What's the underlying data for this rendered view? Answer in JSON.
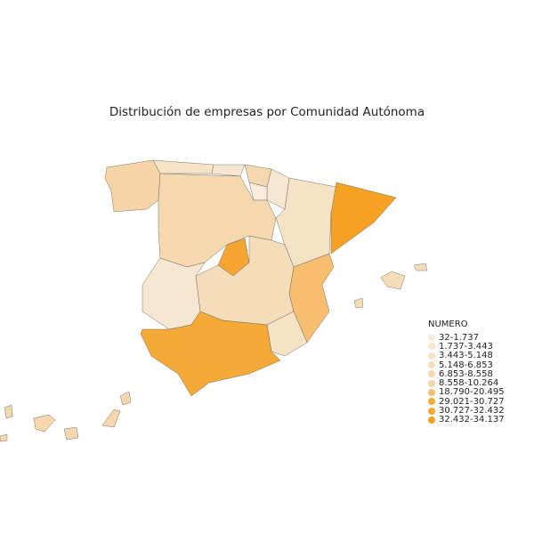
{
  "title": "Distribución de empresas por Comunidad Autónoma",
  "legend": {
    "title": "NUMERO",
    "items": [
      {
        "label": "32-1.737",
        "color": "#f8ecdc"
      },
      {
        "label": "1.737-3.443",
        "color": "#f7e7d1"
      },
      {
        "label": "3.443-5.148",
        "color": "#f6e2c5"
      },
      {
        "label": "5.148-6.853",
        "color": "#f6ddb9"
      },
      {
        "label": "6.853-8.558",
        "color": "#f5d8ae"
      },
      {
        "label": "8.558-10.264",
        "color": "#f5d4a5"
      },
      {
        "label": "18.790-20.495",
        "color": "#f6be6e"
      },
      {
        "label": "29.021-30.727",
        "color": "#f5a936"
      },
      {
        "label": "30.727-32.432",
        "color": "#f5a530"
      },
      {
        "label": "32.432-34.137",
        "color": "#f5a126"
      }
    ]
  },
  "regions": [
    {
      "name": "Galicia",
      "bin": 5
    },
    {
      "name": "Asturias",
      "bin": 2
    },
    {
      "name": "Cantabria",
      "bin": 1
    },
    {
      "name": "Pais Vasco",
      "bin": 4
    },
    {
      "name": "Navarra",
      "bin": 1
    },
    {
      "name": "La Rioja",
      "bin": 0
    },
    {
      "name": "Aragon",
      "bin": 2
    },
    {
      "name": "Cataluna",
      "bin": 9
    },
    {
      "name": "Castilla y Leon",
      "bin": 4
    },
    {
      "name": "Madrid",
      "bin": 8
    },
    {
      "name": "Castilla-La Mancha",
      "bin": 3
    },
    {
      "name": "Extremadura",
      "bin": 1
    },
    {
      "name": "Valencia",
      "bin": 6
    },
    {
      "name": "Murcia",
      "bin": 2
    },
    {
      "name": "Andalucia",
      "bin": 7
    },
    {
      "name": "Baleares",
      "bin": 3
    },
    {
      "name": "Baleares",
      "bin": 3
    },
    {
      "name": "Baleares",
      "bin": 3
    },
    {
      "name": "Canarias",
      "bin": 4
    },
    {
      "name": "Canarias",
      "bin": 4
    },
    {
      "name": "Canarias",
      "bin": 4
    },
    {
      "name": "Canarias",
      "bin": 4
    },
    {
      "name": "Canarias",
      "bin": 4
    },
    {
      "name": "Canarias",
      "bin": 4
    }
  ]
}
